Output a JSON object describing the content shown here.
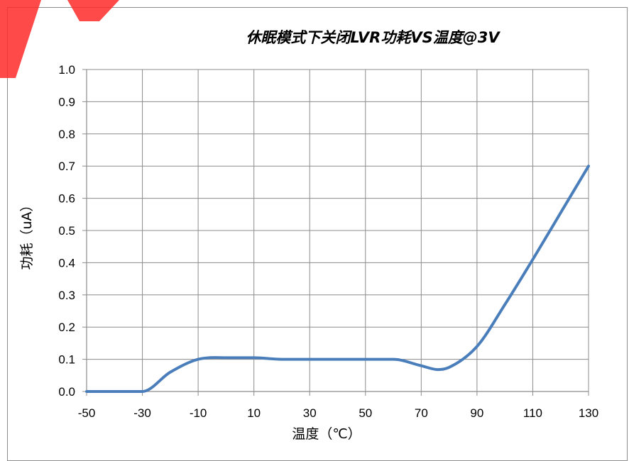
{
  "chart_data": {
    "type": "line",
    "title": "休眠模式下关闭LVR功耗VS温度@3V",
    "xlabel": "温度（℃）",
    "ylabel": "功耗（uA）",
    "xlim": [
      -50,
      130
    ],
    "ylim": [
      0,
      1.0
    ],
    "x_ticks": [
      "-50",
      "-30",
      "-10",
      "10",
      "30",
      "50",
      "70",
      "90",
      "110",
      "130"
    ],
    "y_ticks": [
      "0.0",
      "0.1",
      "0.2",
      "0.3",
      "0.4",
      "0.5",
      "0.6",
      "0.7",
      "0.8",
      "0.9",
      "1.0"
    ],
    "grid": true,
    "legend": "none",
    "series_color": "#4a7ebb",
    "series": [
      {
        "x": [
          -50,
          -40,
          -30,
          -20,
          -10,
          0,
          10,
          20,
          30,
          40,
          50,
          60,
          70,
          76,
          80,
          90,
          100,
          110,
          120,
          130
        ],
        "values": [
          0.0,
          0.0,
          0.0,
          0.06,
          0.1,
          0.105,
          0.105,
          0.1,
          0.1,
          0.1,
          0.1,
          0.1,
          0.08,
          0.068,
          0.075,
          0.14,
          0.27,
          0.41,
          0.555,
          0.7
        ]
      }
    ]
  }
}
